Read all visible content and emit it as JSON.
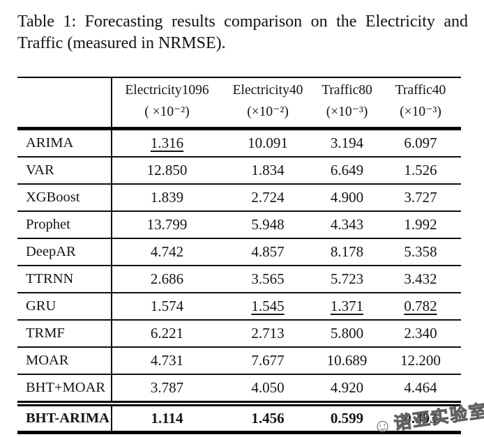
{
  "caption": "Table 1: Forecasting results comparison on the Electricity and Traffic (measured in NRMSE).",
  "table": {
    "columns": [
      {
        "name": "Electricity1096",
        "scale": "( ×10⁻²)"
      },
      {
        "name": "Electricity40",
        "scale": "(×10⁻²)"
      },
      {
        "name": "Traffic80",
        "scale": "(×10⁻³)"
      },
      {
        "name": "Traffic40",
        "scale": "(×10⁻³)"
      }
    ],
    "rows": [
      {
        "label": "ARIMA",
        "values": [
          "1.316",
          "10.091",
          "3.194",
          "6.097"
        ],
        "underline": [
          true,
          false,
          false,
          false
        ]
      },
      {
        "label": "VAR",
        "values": [
          "12.850",
          "1.834",
          "6.649",
          "1.526"
        ]
      },
      {
        "label": "XGBoost",
        "values": [
          "1.839",
          "2.724",
          "4.900",
          "3.727"
        ]
      },
      {
        "label": "Prophet",
        "values": [
          "13.799",
          "5.948",
          "4.343",
          "1.992"
        ]
      },
      {
        "label": "DeepAR",
        "values": [
          "4.742",
          "4.857",
          "8.178",
          "5.358"
        ]
      },
      {
        "label": "TTRNN",
        "values": [
          "2.686",
          "3.565",
          "5.723",
          "3.432"
        ]
      },
      {
        "label": "GRU",
        "values": [
          "1.574",
          "1.545",
          "1.371",
          "0.782"
        ],
        "underline": [
          false,
          true,
          true,
          true
        ]
      },
      {
        "label": "TRMF",
        "values": [
          "6.221",
          "2.713",
          "5.800",
          "2.340"
        ]
      },
      {
        "label": "MOAR",
        "values": [
          "4.731",
          "7.677",
          "10.689",
          "12.200"
        ]
      },
      {
        "label": "BHT+MOAR",
        "values": [
          "3.787",
          "4.050",
          "4.920",
          "4.464"
        ]
      },
      {
        "label": "BHT-ARIMA",
        "values": [
          "1.114",
          "1.456",
          "0.599",
          "0.493"
        ],
        "bold": true,
        "last": true
      }
    ]
  },
  "watermark": {
    "text": "诺亚实验室",
    "logo_icon": "smiley-circle-icon"
  },
  "colors": {
    "text": "#121212",
    "rule": "#000000",
    "watermark_gray": "#606060",
    "background": "#ffffff"
  }
}
